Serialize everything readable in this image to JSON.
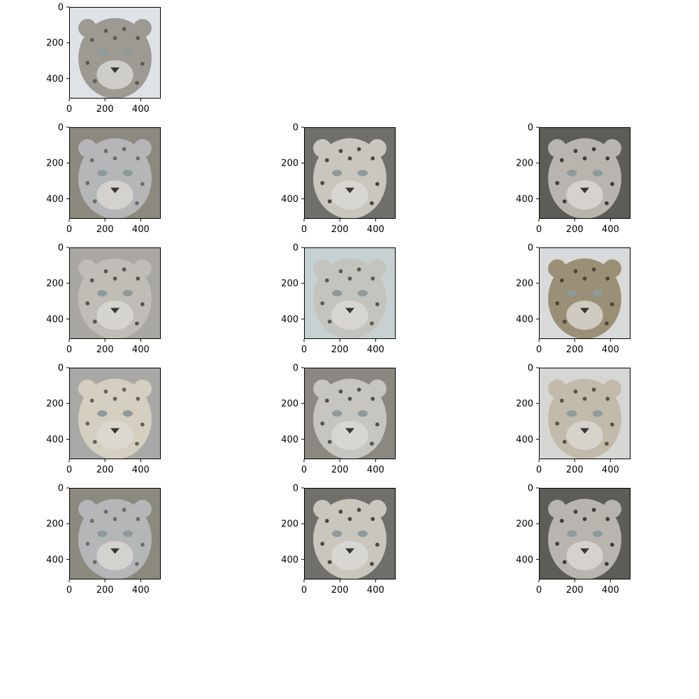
{
  "chart_data": {
    "type": "image-grid",
    "description_free": true,
    "grid": {
      "rows": 5,
      "cols": 3
    },
    "axis": {
      "xlim": [
        0,
        512
      ],
      "ylim": [
        512,
        0
      ],
      "xticks": [
        0,
        200,
        400
      ],
      "yticks": [
        0,
        200,
        400
      ],
      "xtick_labels": [
        "0",
        "200",
        "400"
      ],
      "ytick_labels": [
        "0",
        "200",
        "400"
      ]
    },
    "panels": [
      {
        "row": 0,
        "col": 0,
        "palette": {
          "bg": "#dfe3e8",
          "fur": "#9c9a92",
          "shade": "#5e5b55"
        }
      },
      {
        "row": 1,
        "col": 0,
        "palette": {
          "bg": "#8c8a7e",
          "fur": "#b4b6b8",
          "shade": "#6b6c6e"
        }
      },
      {
        "row": 1,
        "col": 1,
        "palette": {
          "bg": "#6f6f6b",
          "fur": "#c9c6bd",
          "shade": "#4a4843"
        }
      },
      {
        "row": 1,
        "col": 2,
        "palette": {
          "bg": "#5d5d58",
          "fur": "#b7b5ae",
          "shade": "#3f3e3b"
        }
      },
      {
        "row": 2,
        "col": 0,
        "palette": {
          "bg": "#a9a7a1",
          "fur": "#bfbdb6",
          "shade": "#57544f"
        }
      },
      {
        "row": 2,
        "col": 1,
        "palette": {
          "bg": "#c8d1d2",
          "fur": "#c4c4bf",
          "shade": "#5c5a55"
        }
      },
      {
        "row": 2,
        "col": 2,
        "palette": {
          "bg": "#d9dadb",
          "fur": "#9a9078",
          "shade": "#4f4636"
        }
      },
      {
        "row": 3,
        "col": 0,
        "palette": {
          "bg": "#a8a9a6",
          "fur": "#d4cfc0",
          "shade": "#67625a"
        }
      },
      {
        "row": 3,
        "col": 1,
        "palette": {
          "bg": "#8a8880",
          "fur": "#c6c5c0",
          "shade": "#55534f"
        }
      },
      {
        "row": 3,
        "col": 2,
        "palette": {
          "bg": "#d6d6d4",
          "fur": "#c2bbab",
          "shade": "#59534a"
        }
      },
      {
        "row": 4,
        "col": 0,
        "palette": {
          "bg": "#8c8a7e",
          "fur": "#b4b6b8",
          "shade": "#6b6c6e"
        }
      },
      {
        "row": 4,
        "col": 1,
        "palette": {
          "bg": "#6f6f6b",
          "fur": "#c9c6bd",
          "shade": "#4a4843"
        }
      },
      {
        "row": 4,
        "col": 2,
        "palette": {
          "bg": "#5d5d58",
          "fur": "#b7b5ae",
          "shade": "#3f3e3b"
        }
      }
    ]
  }
}
